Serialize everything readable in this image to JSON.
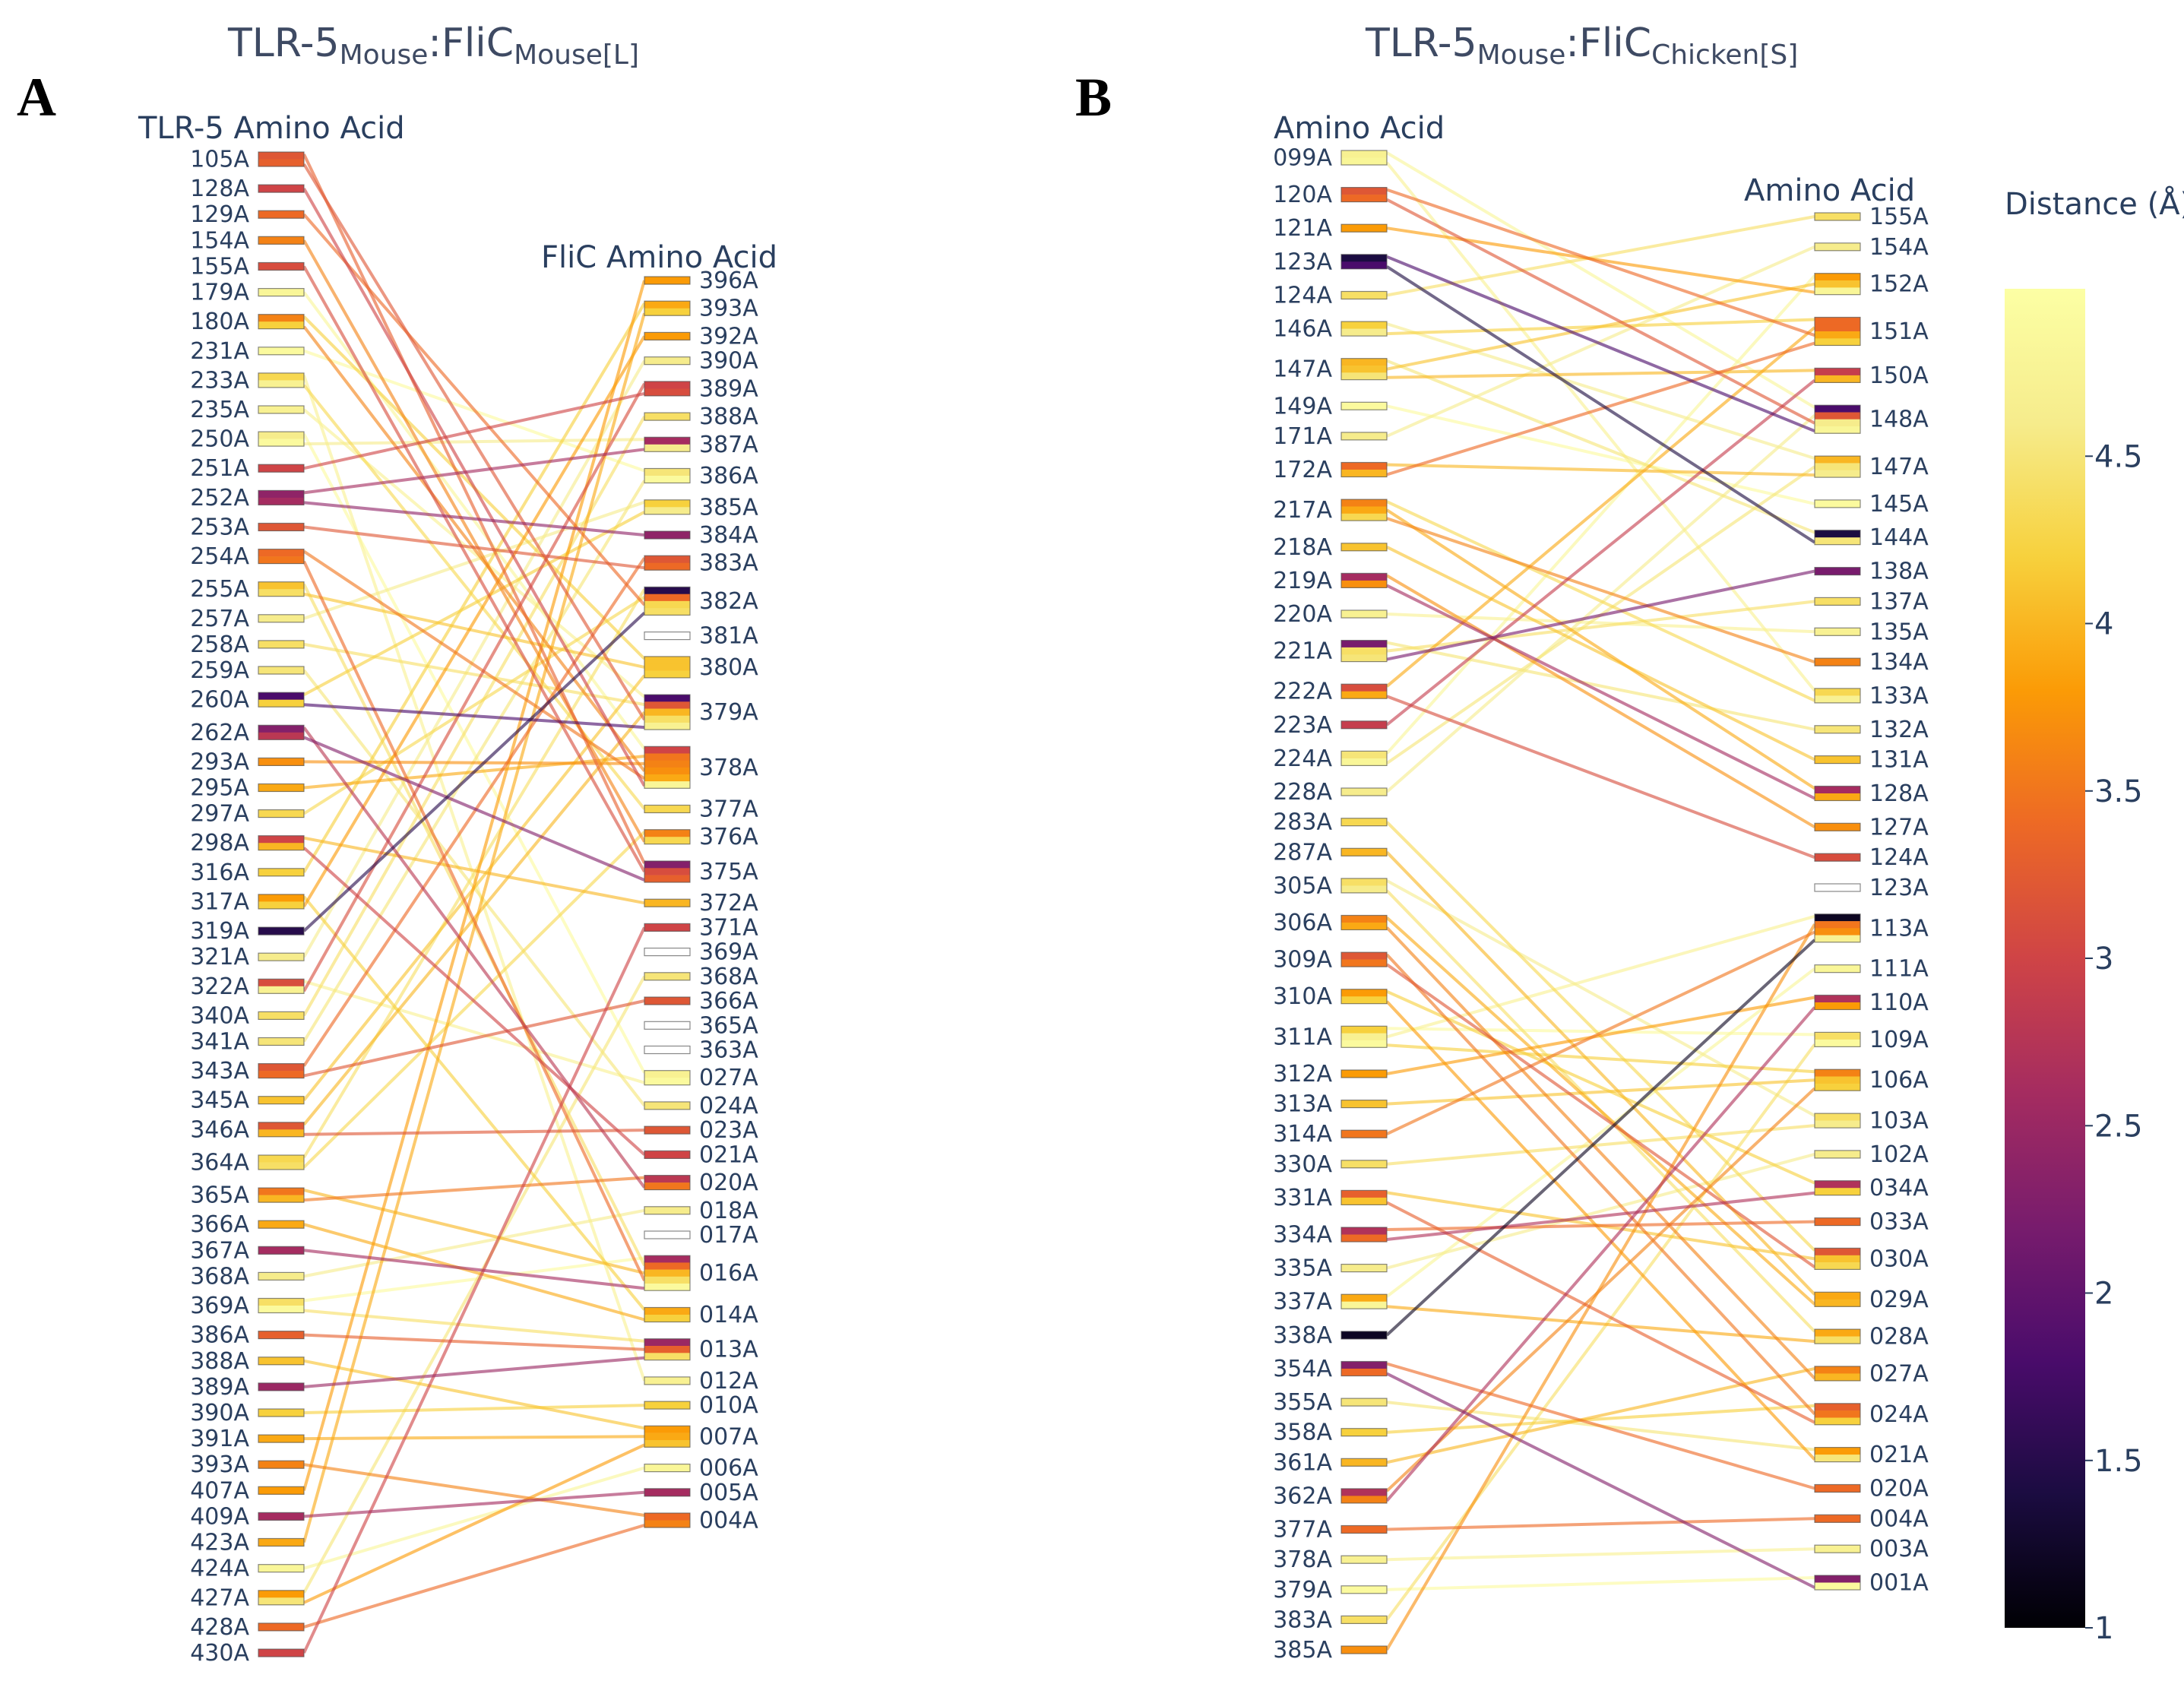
{
  "chart_data": [
    {
      "type": "parallel-categories",
      "panel_label": "A",
      "title": {
        "main": "TLR-5",
        "main_sub": "Mouse",
        "sep": ":",
        "target": "FliC",
        "target_sub": "Mouse[L]"
      },
      "left_header": "TLR-5 Amino Acid",
      "right_header": "FliC Amino Acid",
      "left_residues": [
        "105A",
        "128A",
        "129A",
        "154A",
        "155A",
        "179A",
        "180A",
        "231A",
        "233A",
        "235A",
        "250A",
        "251A",
        "252A",
        "253A",
        "254A",
        "255A",
        "257A",
        "258A",
        "259A",
        "260A",
        "262A",
        "293A",
        "295A",
        "297A",
        "298A",
        "316A",
        "317A",
        "319A",
        "321A",
        "322A",
        "340A",
        "341A",
        "343A",
        "345A",
        "346A",
        "364A",
        "365A",
        "366A",
        "367A",
        "368A",
        "369A",
        "386A",
        "388A",
        "389A",
        "390A",
        "391A",
        "393A",
        "407A",
        "409A",
        "423A",
        "424A",
        "427A",
        "428A",
        "430A"
      ],
      "right_residues": [
        "396A",
        "393A",
        "392A",
        "390A",
        "389A",
        "388A",
        "387A",
        "386A",
        "385A",
        "384A",
        "383A",
        "382A",
        "381A",
        "380A",
        "379A",
        "378A",
        "377A",
        "376A",
        "375A",
        "372A",
        "371A",
        "369A",
        "368A",
        "366A",
        "365A",
        "363A",
        "027A",
        "024A",
        "023A",
        "021A",
        "020A",
        "018A",
        "017A",
        "016A",
        "014A",
        "013A",
        "012A",
        "010A",
        "007A",
        "006A",
        "005A",
        "004A"
      ],
      "links": [
        [
          "105A",
          "379A",
          3.2
        ],
        [
          "105A",
          "375A",
          3.3
        ],
        [
          "128A",
          "378A",
          3.0
        ],
        [
          "129A",
          "382A",
          3.4
        ],
        [
          "154A",
          "376A",
          3.6
        ],
        [
          "155A",
          "375A",
          3.1
        ],
        [
          "179A",
          "378A",
          4.8
        ],
        [
          "180A",
          "380A",
          4.2
        ],
        [
          "231A",
          "386A",
          4.9
        ],
        [
          "233A",
          "377A",
          4.3
        ],
        [
          "235A",
          "379A",
          4.7
        ],
        [
          "250A",
          "387A",
          4.6
        ],
        [
          "251A",
          "389A",
          3.0
        ],
        [
          "252A",
          "384A",
          2.4
        ],
        [
          "252A",
          "387A",
          2.6
        ],
        [
          "253A",
          "383A",
          3.2
        ],
        [
          "254A",
          "378A",
          3.5
        ],
        [
          "254A",
          "016A",
          3.4
        ],
        [
          "255A",
          "380A",
          4.1
        ],
        [
          "257A",
          "385A",
          4.6
        ],
        [
          "258A",
          "379A",
          4.4
        ],
        [
          "259A",
          "024A",
          4.5
        ],
        [
          "260A",
          "379A",
          1.8
        ],
        [
          "260A",
          "385A",
          4.2
        ],
        [
          "262A",
          "375A",
          2.3
        ],
        [
          "262A",
          "020A",
          2.8
        ],
        [
          "293A",
          "378A",
          3.7
        ],
        [
          "295A",
          "378A",
          3.9
        ],
        [
          "297A",
          "382A",
          4.3
        ],
        [
          "298A",
          "021A",
          3.0
        ],
        [
          "316A",
          "393A",
          4.2
        ],
        [
          "317A",
          "392A",
          3.8
        ],
        [
          "319A",
          "382A",
          1.5
        ],
        [
          "321A",
          "390A",
          4.6
        ],
        [
          "322A",
          "027A",
          4.7
        ],
        [
          "322A",
          "389A",
          3.1
        ],
        [
          "340A",
          "388A",
          4.4
        ],
        [
          "341A",
          "386A",
          4.5
        ],
        [
          "343A",
          "383A",
          3.4
        ],
        [
          "345A",
          "380A",
          4.1
        ],
        [
          "346A",
          "023A",
          3.2
        ],
        [
          "346A",
          "379A",
          4.0
        ],
        [
          "364A",
          "376A",
          4.3
        ],
        [
          "365A",
          "020A",
          3.5
        ],
        [
          "365A",
          "016A",
          4.0
        ],
        [
          "366A",
          "014A",
          3.9
        ],
        [
          "367A",
          "016A",
          2.6
        ],
        [
          "368A",
          "018A",
          4.6
        ],
        [
          "369A",
          "016A",
          4.9
        ],
        [
          "369A",
          "013A",
          4.4
        ],
        [
          "386A",
          "013A",
          3.3
        ],
        [
          "388A",
          "007A",
          4.1
        ],
        [
          "389A",
          "013A",
          2.5
        ],
        [
          "390A",
          "010A",
          4.2
        ],
        [
          "391A",
          "007A",
          3.9
        ],
        [
          "393A",
          "004A",
          3.6
        ],
        [
          "407A",
          "396A",
          3.8
        ],
        [
          "409A",
          "005A",
          2.6
        ],
        [
          "423A",
          "393A",
          3.9
        ],
        [
          "424A",
          "006A",
          4.8
        ],
        [
          "427A",
          "007A",
          3.8
        ],
        [
          "427A",
          "368A",
          4.5
        ],
        [
          "428A",
          "004A",
          3.4
        ],
        [
          "430A",
          "371A",
          3.0
        ],
        [
          "255A",
          "016A",
          4.4
        ],
        [
          "317A",
          "014A",
          4.2
        ],
        [
          "343A",
          "366A",
          3.2
        ],
        [
          "250A",
          "027A",
          4.9
        ],
        [
          "233A",
          "012A",
          4.7
        ],
        [
          "298A",
          "372A",
          4.0
        ],
        [
          "364A",
          "382A",
          4.4
        ],
        [
          "180A",
          "378A",
          3.6
        ]
      ],
      "colorbar_title": "",
      "color_range": [
        1,
        5
      ]
    },
    {
      "type": "parallel-categories",
      "panel_label": "B",
      "title": {
        "main": "TLR-5",
        "main_sub": "Mouse",
        "sep": ":",
        "target": "FliC",
        "target_sub": "Chicken[S]"
      },
      "left_header": "Amino Acid",
      "right_header": "Amino Acid",
      "left_residues": [
        "099A",
        "120A",
        "121A",
        "123A",
        "124A",
        "146A",
        "147A",
        "149A",
        "171A",
        "172A",
        "217A",
        "218A",
        "219A",
        "220A",
        "221A",
        "222A",
        "223A",
        "224A",
        "228A",
        "283A",
        "287A",
        "305A",
        "306A",
        "309A",
        "310A",
        "311A",
        "312A",
        "313A",
        "314A",
        "330A",
        "331A",
        "334A",
        "335A",
        "337A",
        "338A",
        "354A",
        "355A",
        "358A",
        "361A",
        "362A",
        "377A",
        "378A",
        "379A",
        "383A",
        "385A"
      ],
      "right_residues": [
        "155A",
        "154A",
        "152A",
        "151A",
        "150A",
        "148A",
        "147A",
        "145A",
        "144A",
        "138A",
        "137A",
        "135A",
        "134A",
        "133A",
        "132A",
        "131A",
        "128A",
        "127A",
        "124A",
        "123A",
        "113A",
        "111A",
        "110A",
        "109A",
        "106A",
        "103A",
        "102A",
        "034A",
        "033A",
        "030A",
        "029A",
        "028A",
        "027A",
        "024A",
        "021A",
        "020A",
        "004A",
        "003A",
        "001A"
      ],
      "links": [
        [
          "099A",
          "148A",
          4.8
        ],
        [
          "099A",
          "133A",
          4.7
        ],
        [
          "120A",
          "151A",
          3.4
        ],
        [
          "121A",
          "152A",
          3.8
        ],
        [
          "123A",
          "148A",
          1.8
        ],
        [
          "123A",
          "144A",
          1.4
        ],
        [
          "124A",
          "155A",
          4.4
        ],
        [
          "146A",
          "151A",
          4.2
        ],
        [
          "146A",
          "147A",
          4.6
        ],
        [
          "147A",
          "150A",
          4.0
        ],
        [
          "147A",
          "144A",
          4.5
        ],
        [
          "147A",
          "152A",
          4.1
        ],
        [
          "149A",
          "145A",
          4.9
        ],
        [
          "171A",
          "154A",
          4.6
        ],
        [
          "172A",
          "151A",
          3.4
        ],
        [
          "172A",
          "147A",
          4.0
        ],
        [
          "217A",
          "133A",
          4.3
        ],
        [
          "217A",
          "134A",
          3.6
        ],
        [
          "218A",
          "131A",
          4.1
        ],
        [
          "219A",
          "128A",
          2.6
        ],
        [
          "219A",
          "127A",
          3.7
        ],
        [
          "220A",
          "135A",
          4.7
        ],
        [
          "221A",
          "138A",
          2.2
        ],
        [
          "221A",
          "137A",
          4.4
        ],
        [
          "222A",
          "124A",
          3.1
        ],
        [
          "222A",
          "151A",
          3.9
        ],
        [
          "223A",
          "150A",
          2.9
        ],
        [
          "224A",
          "147A",
          4.5
        ],
        [
          "228A",
          "148A",
          4.6
        ],
        [
          "283A",
          "030A",
          4.3
        ],
        [
          "287A",
          "029A",
          4.0
        ],
        [
          "305A",
          "028A",
          4.4
        ],
        [
          "306A",
          "027A",
          3.6
        ],
        [
          "309A",
          "030A",
          3.2
        ],
        [
          "309A",
          "024A",
          3.5
        ],
        [
          "310A",
          "021A",
          3.8
        ],
        [
          "311A",
          "113A",
          4.7
        ],
        [
          "311A",
          "109A",
          4.9
        ],
        [
          "311A",
          "106A",
          4.2
        ],
        [
          "312A",
          "110A",
          3.8
        ],
        [
          "313A",
          "106A",
          4.1
        ],
        [
          "314A",
          "113A",
          3.5
        ],
        [
          "330A",
          "103A",
          4.4
        ],
        [
          "331A",
          "024A",
          3.3
        ],
        [
          "331A",
          "030A",
          4.1
        ],
        [
          "334A",
          "033A",
          3.4
        ],
        [
          "334A",
          "034A",
          2.7
        ],
        [
          "335A",
          "102A",
          4.6
        ],
        [
          "337A",
          "111A",
          4.8
        ],
        [
          "337A",
          "028A",
          3.9
        ],
        [
          "338A",
          "113A",
          1.2
        ],
        [
          "354A",
          "001A",
          2.3
        ],
        [
          "354A",
          "020A",
          3.4
        ],
        [
          "355A",
          "021A",
          4.5
        ],
        [
          "358A",
          "024A",
          4.2
        ],
        [
          "361A",
          "027A",
          4.0
        ],
        [
          "362A",
          "110A",
          2.7
        ],
        [
          "362A",
          "106A",
          3.6
        ],
        [
          "377A",
          "004A",
          3.4
        ],
        [
          "378A",
          "003A",
          4.7
        ],
        [
          "379A",
          "001A",
          4.9
        ],
        [
          "383A",
          "109A",
          4.4
        ],
        [
          "385A",
          "113A",
          3.7
        ],
        [
          "120A",
          "148A",
          3.2
        ],
        [
          "217A",
          "128A",
          3.9
        ],
        [
          "221A",
          "132A",
          4.5
        ],
        [
          "224A",
          "152A",
          4.8
        ],
        [
          "305A",
          "103A",
          4.6
        ],
        [
          "306A",
          "029A",
          3.9
        ],
        [
          "310A",
          "034A",
          4.2
        ]
      ],
      "colorbar_title": "Distance (Å)",
      "colorbar_ticks": [
        "1",
        "1.5",
        "2",
        "2.5",
        "3",
        "3.5",
        "4",
        "4.5"
      ],
      "color_range": [
        1,
        5
      ]
    }
  ]
}
